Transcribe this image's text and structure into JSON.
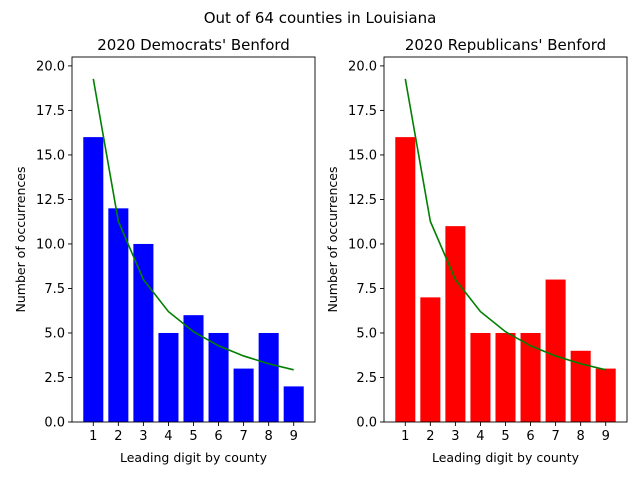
{
  "figure": {
    "suptitle": "Out of 64 counties in Louisiana"
  },
  "colors": {
    "democrats_bar": "#0000ff",
    "republicans_bar": "#ff0000",
    "benford_line": "#008000"
  },
  "chart_data": [
    {
      "type": "bar",
      "title": "2020 Democrats' Benford",
      "xlabel": "Leading digit by county",
      "ylabel": "Number of occurrences",
      "categories": [
        "1",
        "2",
        "3",
        "4",
        "5",
        "6",
        "7",
        "8",
        "9"
      ],
      "values": [
        16,
        12,
        10,
        5,
        6,
        5,
        3,
        5,
        2
      ],
      "bar_color": "#0000ff",
      "overlay_line": {
        "type": "line",
        "color": "#008000",
        "values": [
          19.27,
          11.27,
          8.0,
          6.2,
          5.07,
          4.28,
          3.71,
          3.27,
          2.93
        ]
      },
      "ylim": [
        0,
        20.5
      ],
      "yticks": [
        "0.0",
        "2.5",
        "5.0",
        "7.5",
        "10.0",
        "12.5",
        "15.0",
        "17.5",
        "20.0"
      ],
      "grid": false,
      "legend": "none"
    },
    {
      "type": "bar",
      "title": "2020 Republicans' Benford",
      "xlabel": "Leading digit by county",
      "ylabel": "Number of occurrences",
      "categories": [
        "1",
        "2",
        "3",
        "4",
        "5",
        "6",
        "7",
        "8",
        "9"
      ],
      "values": [
        16,
        7,
        11,
        5,
        5,
        5,
        8,
        4,
        3
      ],
      "bar_color": "#ff0000",
      "overlay_line": {
        "type": "line",
        "color": "#008000",
        "values": [
          19.27,
          11.27,
          8.0,
          6.2,
          5.07,
          4.28,
          3.71,
          3.27,
          2.93
        ]
      },
      "ylim": [
        0,
        20.5
      ],
      "yticks": [
        "0.0",
        "2.5",
        "5.0",
        "7.5",
        "10.0",
        "12.5",
        "15.0",
        "17.5",
        "20.0"
      ],
      "grid": false,
      "legend": "none"
    }
  ]
}
